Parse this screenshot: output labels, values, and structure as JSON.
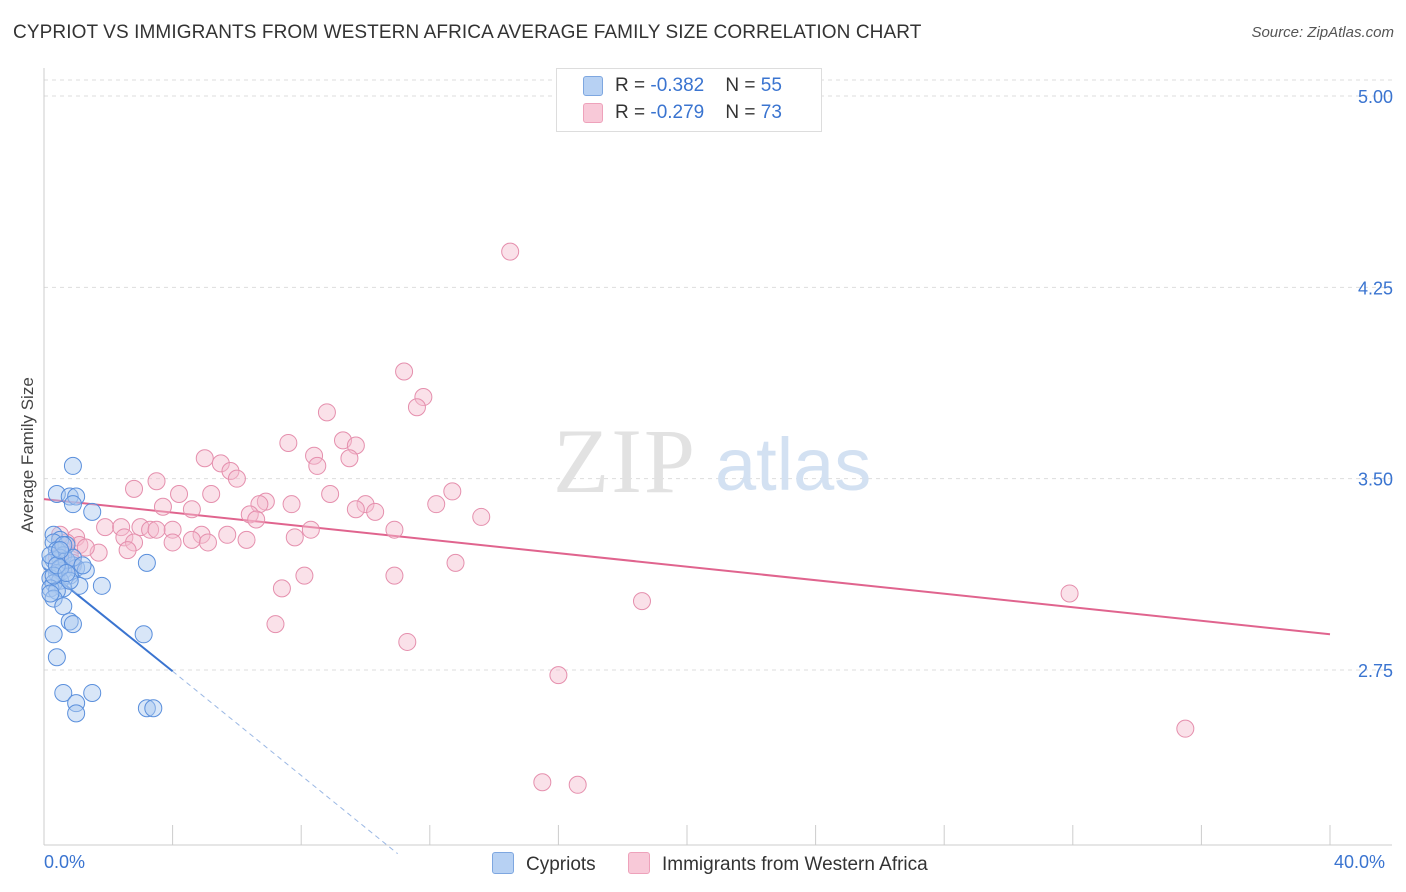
{
  "header": {
    "title": "CYPRIOT VS IMMIGRANTS FROM WESTERN AFRICA AVERAGE FAMILY SIZE CORRELATION CHART",
    "source": "Source: ZipAtlas.com"
  },
  "legend_top": {
    "rows": [
      {
        "r_label": "R = ",
        "r_value": "-0.382",
        "n_label": "N = ",
        "n_value": "55"
      },
      {
        "r_label": "R = ",
        "r_value": "-0.279",
        "n_label": "N = ",
        "n_value": "73"
      }
    ]
  },
  "legend_bottom": {
    "series_a": "Cypriots",
    "series_b": "Immigrants from Western Africa"
  },
  "watermark": {
    "part1": "ZIP",
    "part2": "atlas"
  },
  "colors": {
    "blue": "#3a74d0",
    "blue_fill": "#a9c8f0",
    "pink": "#e0648e",
    "pink_fill": "#f5bccf",
    "grid": "#dddddd"
  },
  "chart_data": {
    "type": "scatter",
    "title": "CYPRIOT VS IMMIGRANTS FROM WESTERN AFRICA AVERAGE FAMILY SIZE CORRELATION CHART",
    "xlabel": "",
    "ylabel": "Average Family Size",
    "xlim": [
      0,
      40
    ],
    "ylim": [
      2.0,
      5.1
    ],
    "x_tick_labels": [
      "0.0%",
      "40.0%"
    ],
    "y_ticks": [
      2.75,
      3.5,
      4.25,
      5.0
    ],
    "y_tick_labels": [
      "2.75",
      "3.50",
      "4.25",
      "5.00"
    ],
    "grid": true,
    "legend_position": "top-center",
    "series": [
      {
        "name": "Cypriots",
        "color": "#3a74d0",
        "R": -0.382,
        "N": 55,
        "trend": {
          "x": [
            0.0,
            4.0
          ],
          "y": [
            3.15,
            2.745
          ]
        },
        "trend_dashed": {
          "x": [
            4.0,
            11.0
          ],
          "y": [
            2.745,
            2.03
          ]
        },
        "points": [
          {
            "x": 0.9,
            "y": 3.55
          },
          {
            "x": 0.4,
            "y": 3.44
          },
          {
            "x": 0.8,
            "y": 3.43
          },
          {
            "x": 1.0,
            "y": 3.43
          },
          {
            "x": 0.9,
            "y": 3.4
          },
          {
            "x": 1.5,
            "y": 3.37
          },
          {
            "x": 0.3,
            "y": 3.28
          },
          {
            "x": 0.5,
            "y": 3.26
          },
          {
            "x": 0.3,
            "y": 3.25
          },
          {
            "x": 0.7,
            "y": 3.24
          },
          {
            "x": 0.4,
            "y": 3.22
          },
          {
            "x": 0.6,
            "y": 3.2
          },
          {
            "x": 0.3,
            "y": 3.18
          },
          {
            "x": 0.5,
            "y": 3.19
          },
          {
            "x": 0.2,
            "y": 3.17
          },
          {
            "x": 0.9,
            "y": 3.16
          },
          {
            "x": 1.0,
            "y": 3.15
          },
          {
            "x": 0.6,
            "y": 3.14
          },
          {
            "x": 1.3,
            "y": 3.14
          },
          {
            "x": 3.2,
            "y": 3.17
          },
          {
            "x": 0.4,
            "y": 3.13
          },
          {
            "x": 0.8,
            "y": 3.12
          },
          {
            "x": 0.2,
            "y": 3.11
          },
          {
            "x": 0.5,
            "y": 3.1
          },
          {
            "x": 0.3,
            "y": 3.09
          },
          {
            "x": 1.1,
            "y": 3.08
          },
          {
            "x": 1.8,
            "y": 3.08
          },
          {
            "x": 0.6,
            "y": 3.07
          },
          {
            "x": 0.2,
            "y": 3.07
          },
          {
            "x": 0.4,
            "y": 3.06
          },
          {
            "x": 0.3,
            "y": 3.03
          },
          {
            "x": 0.6,
            "y": 3.0
          },
          {
            "x": 0.8,
            "y": 2.94
          },
          {
            "x": 0.9,
            "y": 2.93
          },
          {
            "x": 0.3,
            "y": 2.89
          },
          {
            "x": 3.1,
            "y": 2.89
          },
          {
            "x": 0.4,
            "y": 2.8
          },
          {
            "x": 0.6,
            "y": 2.66
          },
          {
            "x": 1.5,
            "y": 2.66
          },
          {
            "x": 1.0,
            "y": 2.62
          },
          {
            "x": 3.2,
            "y": 2.6
          },
          {
            "x": 3.4,
            "y": 2.6
          },
          {
            "x": 1.0,
            "y": 2.58
          },
          {
            "x": 0.2,
            "y": 3.2
          },
          {
            "x": 0.7,
            "y": 3.18
          },
          {
            "x": 0.5,
            "y": 3.15
          },
          {
            "x": 0.9,
            "y": 3.19
          },
          {
            "x": 0.3,
            "y": 3.12
          },
          {
            "x": 1.2,
            "y": 3.16
          },
          {
            "x": 0.6,
            "y": 3.24
          },
          {
            "x": 0.4,
            "y": 3.16
          },
          {
            "x": 0.8,
            "y": 3.1
          },
          {
            "x": 0.2,
            "y": 3.05
          },
          {
            "x": 0.5,
            "y": 3.22
          },
          {
            "x": 0.7,
            "y": 3.13
          }
        ]
      },
      {
        "name": "Immigrants from Western Africa",
        "color": "#e0648e",
        "R": -0.279,
        "N": 73,
        "trend": {
          "x": [
            0.0,
            40.0
          ],
          "y": [
            3.42,
            2.89
          ]
        },
        "points": [
          {
            "x": 14.5,
            "y": 4.39
          },
          {
            "x": 11.2,
            "y": 3.92
          },
          {
            "x": 11.8,
            "y": 3.82
          },
          {
            "x": 11.6,
            "y": 3.78
          },
          {
            "x": 8.8,
            "y": 3.76
          },
          {
            "x": 9.3,
            "y": 3.65
          },
          {
            "x": 7.6,
            "y": 3.64
          },
          {
            "x": 9.7,
            "y": 3.63
          },
          {
            "x": 8.4,
            "y": 3.59
          },
          {
            "x": 5.0,
            "y": 3.58
          },
          {
            "x": 9.5,
            "y": 3.58
          },
          {
            "x": 5.5,
            "y": 3.56
          },
          {
            "x": 8.5,
            "y": 3.55
          },
          {
            "x": 5.8,
            "y": 3.53
          },
          {
            "x": 6.0,
            "y": 3.5
          },
          {
            "x": 3.5,
            "y": 3.49
          },
          {
            "x": 2.8,
            "y": 3.46
          },
          {
            "x": 12.7,
            "y": 3.45
          },
          {
            "x": 8.9,
            "y": 3.44
          },
          {
            "x": 5.2,
            "y": 3.44
          },
          {
            "x": 4.2,
            "y": 3.44
          },
          {
            "x": 6.9,
            "y": 3.41
          },
          {
            "x": 7.7,
            "y": 3.4
          },
          {
            "x": 12.2,
            "y": 3.4
          },
          {
            "x": 6.7,
            "y": 3.4
          },
          {
            "x": 10.0,
            "y": 3.4
          },
          {
            "x": 3.7,
            "y": 3.39
          },
          {
            "x": 9.7,
            "y": 3.38
          },
          {
            "x": 4.6,
            "y": 3.38
          },
          {
            "x": 10.3,
            "y": 3.37
          },
          {
            "x": 6.4,
            "y": 3.36
          },
          {
            "x": 13.6,
            "y": 3.35
          },
          {
            "x": 6.6,
            "y": 3.34
          },
          {
            "x": 1.9,
            "y": 3.31
          },
          {
            "x": 3.0,
            "y": 3.31
          },
          {
            "x": 2.4,
            "y": 3.31
          },
          {
            "x": 4.0,
            "y": 3.3
          },
          {
            "x": 3.3,
            "y": 3.3
          },
          {
            "x": 8.3,
            "y": 3.3
          },
          {
            "x": 10.9,
            "y": 3.3
          },
          {
            "x": 5.7,
            "y": 3.28
          },
          {
            "x": 4.9,
            "y": 3.28
          },
          {
            "x": 3.5,
            "y": 3.3
          },
          {
            "x": 7.8,
            "y": 3.27
          },
          {
            "x": 2.5,
            "y": 3.27
          },
          {
            "x": 4.6,
            "y": 3.26
          },
          {
            "x": 4.0,
            "y": 3.25
          },
          {
            "x": 6.3,
            "y": 3.26
          },
          {
            "x": 2.8,
            "y": 3.25
          },
          {
            "x": 5.1,
            "y": 3.25
          },
          {
            "x": 1.0,
            "y": 3.27
          },
          {
            "x": 1.1,
            "y": 3.24
          },
          {
            "x": 0.6,
            "y": 3.22
          },
          {
            "x": 1.7,
            "y": 3.21
          },
          {
            "x": 2.6,
            "y": 3.22
          },
          {
            "x": 0.8,
            "y": 3.2
          },
          {
            "x": 0.4,
            "y": 3.19
          },
          {
            "x": 12.8,
            "y": 3.17
          },
          {
            "x": 8.1,
            "y": 3.12
          },
          {
            "x": 10.9,
            "y": 3.12
          },
          {
            "x": 7.4,
            "y": 3.07
          },
          {
            "x": 31.9,
            "y": 3.05
          },
          {
            "x": 18.6,
            "y": 3.02
          },
          {
            "x": 7.2,
            "y": 2.93
          },
          {
            "x": 11.3,
            "y": 2.86
          },
          {
            "x": 16.0,
            "y": 2.73
          },
          {
            "x": 35.5,
            "y": 2.52
          },
          {
            "x": 15.5,
            "y": 2.31
          },
          {
            "x": 16.6,
            "y": 2.3
          },
          {
            "x": 0.7,
            "y": 3.25
          },
          {
            "x": 1.3,
            "y": 3.23
          },
          {
            "x": 0.9,
            "y": 3.17
          },
          {
            "x": 0.5,
            "y": 3.28
          }
        ]
      }
    ]
  }
}
